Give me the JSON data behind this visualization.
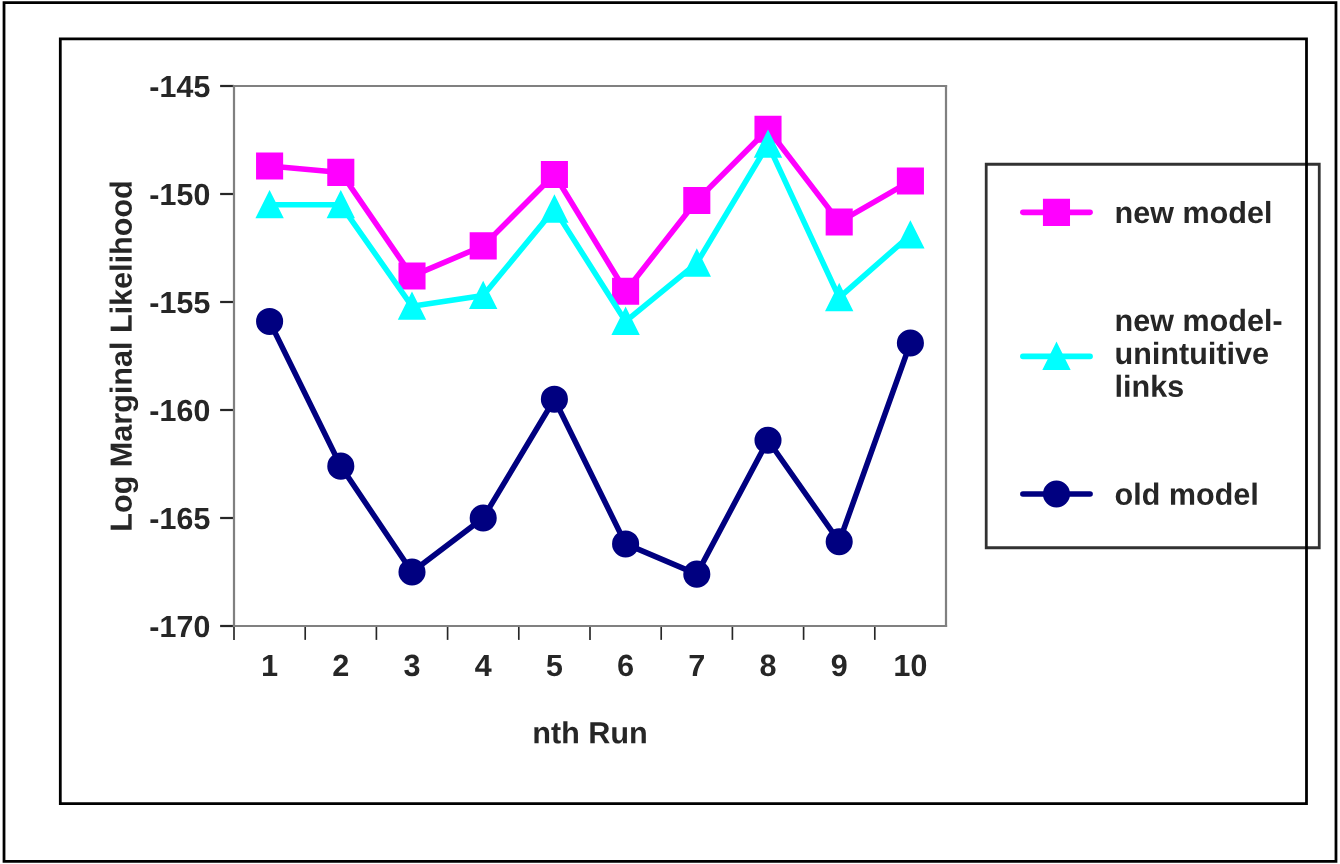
{
  "chart_data": {
    "type": "line",
    "xlabel": "nth Run",
    "ylabel": "Log Marginal Likelihood",
    "categories": [
      "1",
      "2",
      "3",
      "4",
      "5",
      "6",
      "7",
      "8",
      "9",
      "10"
    ],
    "series": [
      {
        "name": "new model",
        "color": "#ff00ff",
        "marker": "square",
        "values": [
          -148.7,
          -149.0,
          -153.8,
          -152.4,
          -149.1,
          -154.5,
          -150.3,
          -147.0,
          -151.3,
          -149.4
        ]
      },
      {
        "name": "new model-\nunintuitive\nlinks",
        "color": "#00ffff",
        "marker": "triangle",
        "values": [
          -150.5,
          -150.5,
          -155.2,
          -154.7,
          -150.7,
          -155.9,
          -153.2,
          -147.7,
          -154.8,
          -151.9
        ]
      },
      {
        "name": "old model",
        "color": "#000080",
        "marker": "circle",
        "values": [
          -155.9,
          -162.6,
          -167.5,
          -165.0,
          -159.5,
          -166.2,
          -167.6,
          -161.4,
          -166.1,
          -156.9
        ]
      }
    ],
    "ylim": [
      -170,
      -145
    ],
    "yticks": [
      -170,
      -165,
      -160,
      -155,
      -150,
      -145
    ],
    "grid": false,
    "legend": "right",
    "line_style": "solid"
  }
}
